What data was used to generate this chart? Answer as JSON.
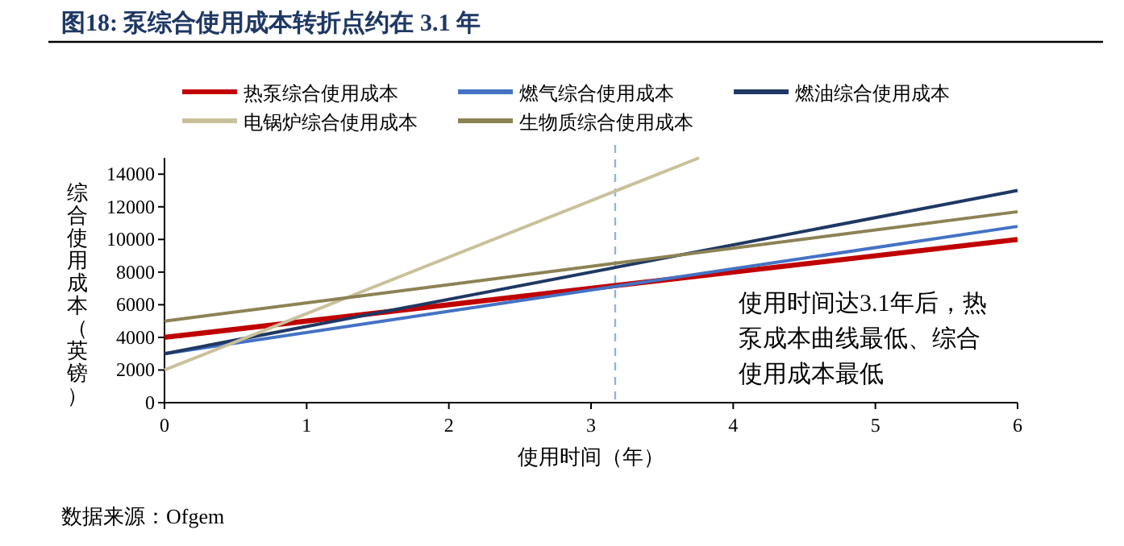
{
  "chart_data": {
    "type": "line",
    "title": "图18:  泵综合使用成本转折点约在 3.1 年",
    "xlabel": "使用时间（年）",
    "ylabel": "综合使用成本（英镑）",
    "x": [
      0,
      6
    ],
    "series": [
      {
        "name": "热泵综合使用成本",
        "color": "#c00000",
        "values": [
          4000,
          10000
        ]
      },
      {
        "name": "燃气综合使用成本",
        "color": "#4472c4",
        "values": [
          3000,
          10800
        ]
      },
      {
        "name": "燃油综合使用成本",
        "color": "#1f3864",
        "values": [
          3000,
          13000
        ]
      },
      {
        "name": "电锅炉综合使用成本",
        "color": "#c9c19b",
        "x": [
          0,
          3.76
        ],
        "values": [
          2000,
          15000
        ]
      },
      {
        "name": "生物质综合使用成本",
        "color": "#8c8254",
        "values": [
          5000,
          11700
        ]
      }
    ],
    "xlim": [
      0,
      6
    ],
    "xticks": [
      0,
      1,
      2,
      3,
      4,
      5,
      6
    ],
    "ylim": [
      0,
      15000
    ],
    "yticks": [
      0,
      2000,
      4000,
      6000,
      8000,
      10000,
      12000,
      14000
    ],
    "ref_lines": [
      {
        "axis": "x",
        "value": 3.17,
        "color": "#8fb3e0",
        "line_style": "dashed"
      }
    ],
    "annotations": [
      "使用时间达3.1年后，热泵成本曲线最低、综合使用成本最低",
      "数据来源：Ofgem"
    ],
    "grid": false,
    "legend": "top",
    "line_style": "solid"
  }
}
